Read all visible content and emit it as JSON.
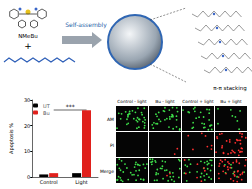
{
  "diagram": {
    "molecule_label": "NMeBu",
    "arrow_label": "Self-assembly",
    "stacking_label": "π-π stacking"
  },
  "chart_data": {
    "type": "bar",
    "categories": [
      "Control",
      "Light"
    ],
    "series": [
      {
        "name": "UT",
        "color": "#000000",
        "values": [
          1,
          1.5
        ]
      },
      {
        "name": "Bu",
        "color": "#e0201c",
        "values": [
          1.5,
          26
        ]
      }
    ],
    "ylabel": "Apoptosis %",
    "ylim": [
      0,
      30
    ],
    "yticks": [
      0,
      10,
      20,
      30
    ],
    "legend": "top-left",
    "grid": false,
    "annotation": "***"
  },
  "microscopy": {
    "columns": [
      "Control - light",
      "Bu - light",
      "Control + light",
      "Bu + light"
    ],
    "rows": [
      "AM",
      "PI",
      "Merge"
    ]
  }
}
